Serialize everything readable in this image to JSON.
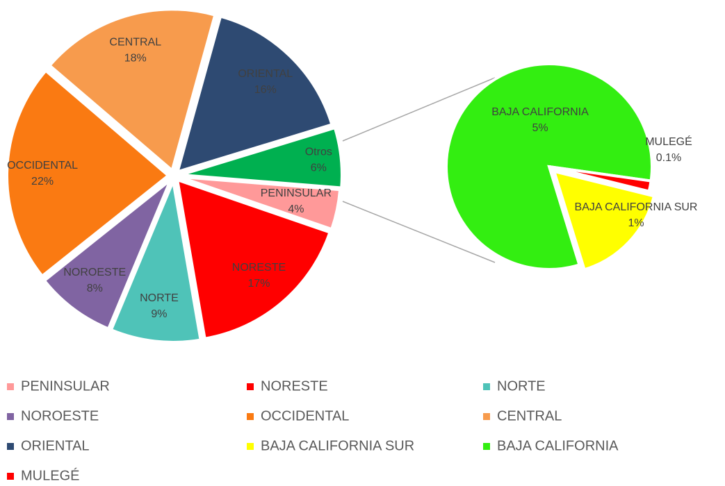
{
  "chart_data": {
    "type": "pie_of_pie",
    "categories": [
      "PENINSULAR",
      "NORESTE",
      "NORTE",
      "NOROESTE",
      "OCCIDENTAL",
      "CENTRAL",
      "ORIENTAL"
    ],
    "values": [
      4,
      17,
      9,
      8,
      22,
      18,
      16
    ],
    "value_labels": [
      "4%",
      "17%",
      "9%",
      "8%",
      "22%",
      "18%",
      "16%"
    ],
    "colors": [
      "#ff9999",
      "#ff0000",
      "#4fc3b8",
      "#8064a2",
      "#fa7a12",
      "#f79b4d",
      "#2e4a72"
    ],
    "other": {
      "label": "Otros",
      "value": 6,
      "value_label": "6%",
      "color": "#00b050"
    },
    "secondary": {
      "categories": [
        "BAJA CALIFORNIA SUR",
        "BAJA CALIFORNIA",
        "MULEGÉ"
      ],
      "values": [
        1,
        5,
        0.1
      ],
      "value_labels": [
        "1%",
        "5%",
        "0.1%"
      ],
      "colors": [
        "#ffff00",
        "#33ee11",
        "#ff0000"
      ]
    },
    "legend": "bottom"
  }
}
